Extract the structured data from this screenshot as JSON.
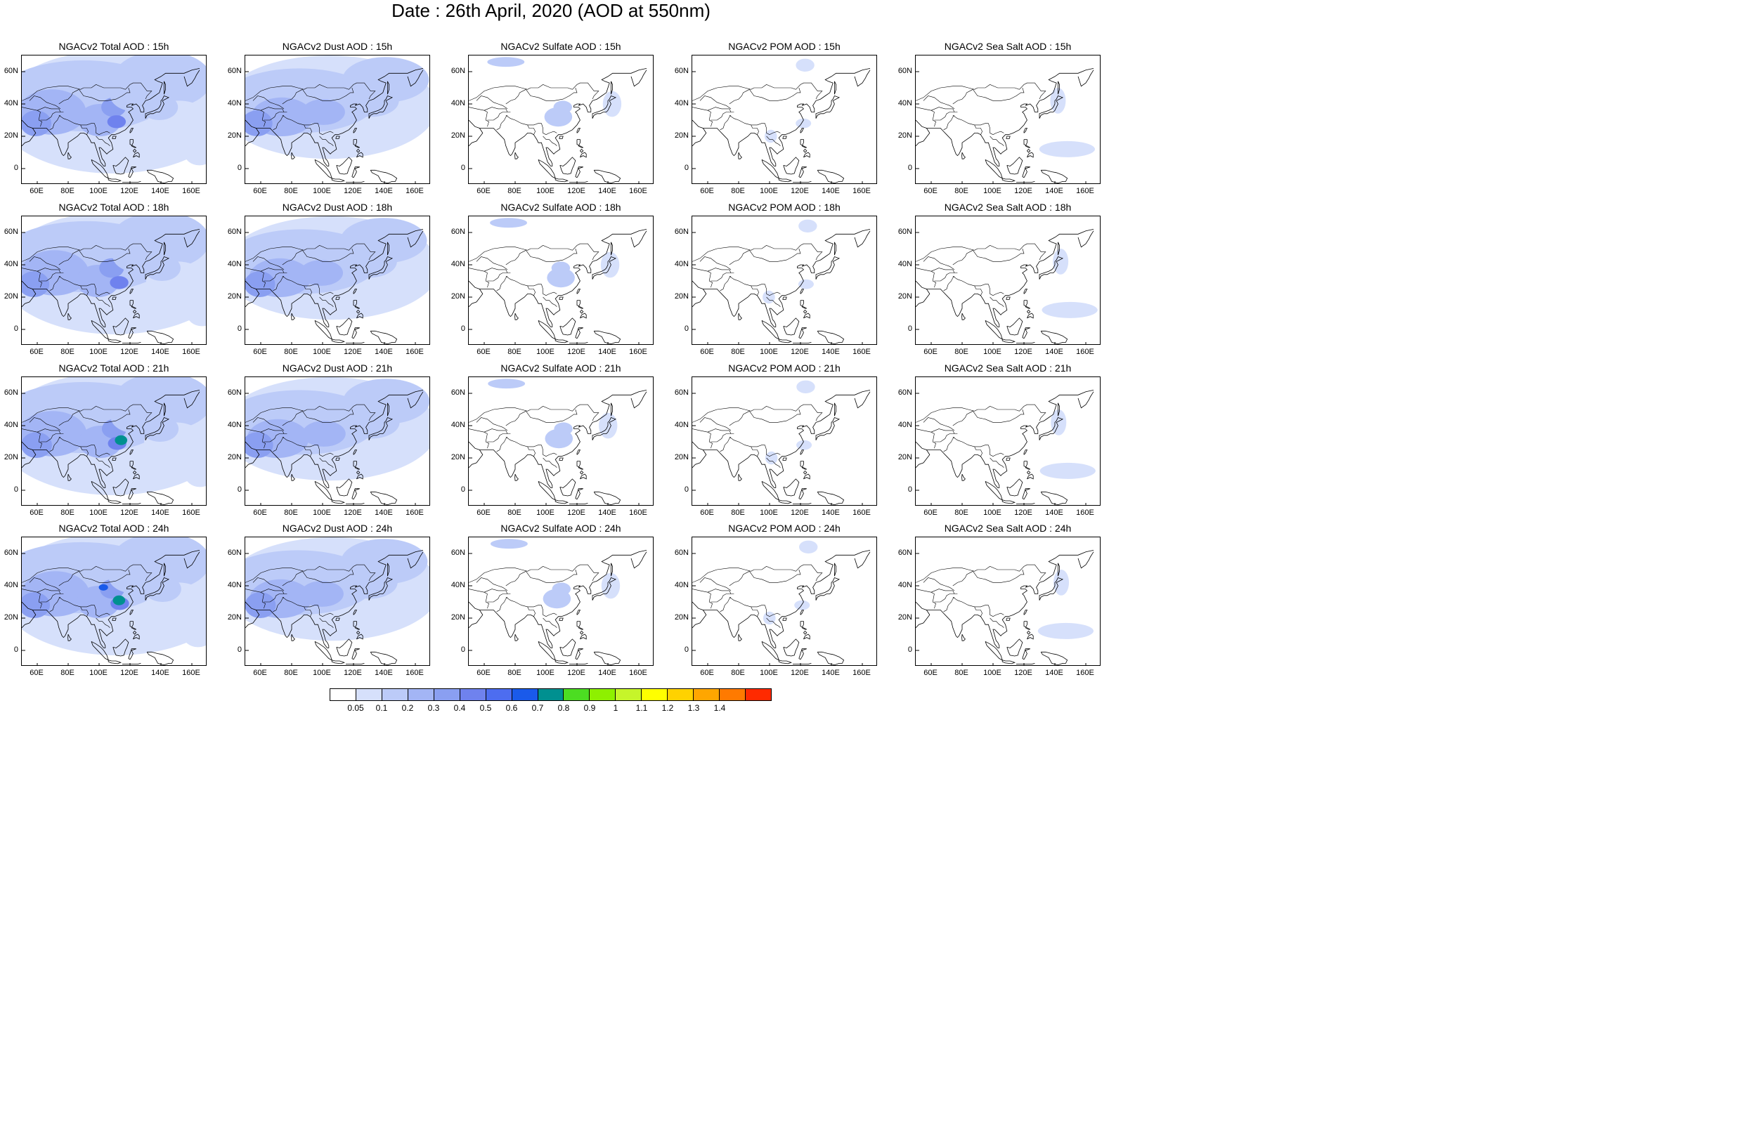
{
  "title": "Date : 26th April, 2020 (AOD at 550nm)",
  "columns": [
    {
      "key": "total",
      "label": "Total"
    },
    {
      "key": "dust",
      "label": "Dust"
    },
    {
      "key": "sulfate",
      "label": "Sulfate"
    },
    {
      "key": "pom",
      "label": "POM"
    },
    {
      "key": "seasalt",
      "label": "Sea Salt"
    }
  ],
  "rows": [
    "15h",
    "18h",
    "21h",
    "24h"
  ],
  "panel_titles": [
    [
      "NGACv2 Total AOD : 15h",
      "NGACv2 Dust AOD : 15h",
      "NGACv2 Sulfate AOD : 15h",
      "NGACv2 POM AOD : 15h",
      "NGACv2 Sea Salt AOD : 15h"
    ],
    [
      "NGACv2 Total AOD : 18h",
      "NGACv2 Dust AOD : 18h",
      "NGACv2 Sulfate AOD : 18h",
      "NGACv2 POM AOD : 18h",
      "NGACv2 Sea Salt AOD : 18h"
    ],
    [
      "NGACv2 Total AOD : 21h",
      "NGACv2 Dust AOD : 21h",
      "NGACv2 Sulfate AOD : 21h",
      "NGACv2 POM AOD : 21h",
      "NGACv2 Sea Salt AOD : 21h"
    ],
    [
      "NGACv2 Total AOD : 24h",
      "NGACv2 Dust AOD : 24h",
      "NGACv2 Sulfate AOD : 24h",
      "NGACv2 POM AOD : 24h",
      "NGACv2 Sea Salt  AOD : 24h"
    ]
  ],
  "map": {
    "lon_range": [
      50,
      170
    ],
    "lat_range": [
      -10,
      70
    ],
    "lat_ticks": [
      "60N",
      "40N",
      "20N",
      "0"
    ],
    "lon_ticks": [
      "60E",
      "80E",
      "100E",
      "120E",
      "140E",
      "160E"
    ]
  },
  "colorbar": {
    "labels": [
      "0.05",
      "0.1",
      "0.2",
      "0.3",
      "0.4",
      "0.5",
      "0.6",
      "0.7",
      "0.8",
      "0.9",
      "1",
      "1.1",
      "1.2",
      "1.3",
      "1.4"
    ],
    "colors": [
      "#ffffff",
      "#d6e0fb",
      "#bccbf8",
      "#a3b5f5",
      "#8a9ff1",
      "#6f82ee",
      "#4d6df0",
      "#1a5aea",
      "#009090",
      "#4cdd22",
      "#8ef000",
      "#c6f52a",
      "#ffff00",
      "#ffd200",
      "#ffa600",
      "#ff7a00",
      "#ff2a00"
    ]
  }
}
